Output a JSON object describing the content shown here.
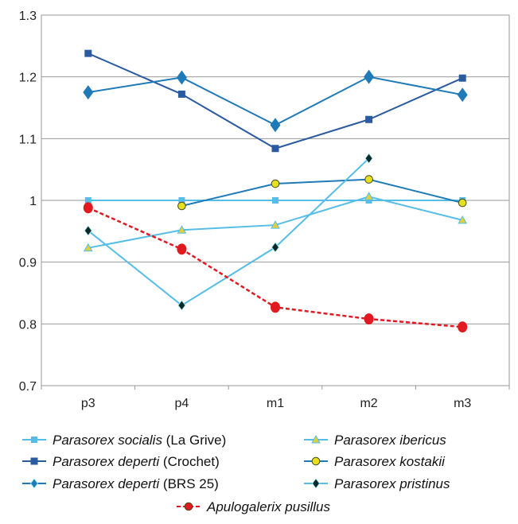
{
  "chart_data": {
    "type": "line",
    "title": "",
    "xlabel": "",
    "ylabel": "",
    "categories": [
      "p3",
      "p4",
      "m1",
      "m2",
      "m3"
    ],
    "ylim": [
      0.7,
      1.3
    ],
    "yticks": [
      "0.7",
      "0.8",
      "0.9",
      "1",
      "1.1",
      "1.2",
      "1.3"
    ],
    "grid": "horizontal",
    "legend_position": "bottom",
    "series": [
      {
        "legend": {
          "italic": "Parasorex socialis",
          "normal": " (La Grive)"
        },
        "color": "#55bde6",
        "marker": "square-small",
        "dash": "solid",
        "values": [
          1.0,
          1.0,
          1.0,
          1.0,
          1.0
        ]
      },
      {
        "legend": {
          "italic": "Parasorex ibericus",
          "normal": ""
        },
        "color": "#55bde6",
        "marker": "triangle",
        "marker_fill": "#e0d040",
        "dash": "solid",
        "values": [
          0.923,
          0.952,
          0.96,
          1.006,
          0.968
        ]
      },
      {
        "legend": {
          "italic": "Parasorex deperti",
          "normal": " (Crochet)"
        },
        "color": "#2a5aa0",
        "marker": "square",
        "dash": "solid",
        "values": [
          1.238,
          1.172,
          1.084,
          1.131,
          1.198
        ]
      },
      {
        "legend": {
          "italic": "Parasorex kostakii",
          "normal": ""
        },
        "color": "#1f7ab8",
        "marker": "circle",
        "marker_fill": "#e6e020",
        "dash": "solid",
        "values": [
          null,
          0.991,
          1.027,
          1.034,
          0.996
        ]
      },
      {
        "legend": {
          "italic": "Parasorex deperti",
          "normal": " (BRS 25)"
        },
        "color": "#1f7ab8",
        "marker": "diamond",
        "dash": "solid",
        "values": [
          1.175,
          1.199,
          1.122,
          1.2,
          1.171
        ]
      },
      {
        "legend": {
          "italic": "Parasorex pristinus",
          "normal": ""
        },
        "color": "#55bde6",
        "marker": "diamond-small",
        "marker_fill": "#0b2b2b",
        "dash": "solid",
        "values": [
          0.951,
          0.83,
          0.924,
          1.068,
          null
        ]
      },
      {
        "legend": {
          "italic": "Apulogalerix pusillus",
          "normal": ""
        },
        "color": "#e11a22",
        "marker": "circle-big",
        "dash": "dashed",
        "values": [
          0.988,
          0.921,
          0.827,
          0.808,
          0.795
        ]
      }
    ]
  }
}
